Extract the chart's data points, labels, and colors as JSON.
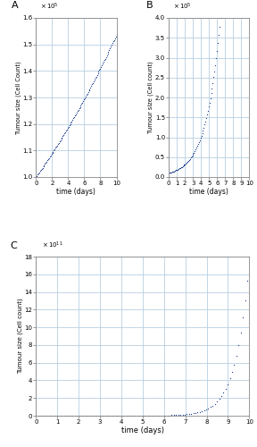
{
  "title_A": "A",
  "title_B": "B",
  "title_C": "C",
  "xlabel": "time (days)",
  "ylabel_A": "Tumour size (Cell Count)",
  "ylabel_B": "Tumour size (Cell count)",
  "ylabel_C": "Tumour size (Cell count)",
  "xmax": 10,
  "xticks_A": [
    0,
    2,
    4,
    6,
    8,
    10
  ],
  "xticks_B": [
    0,
    1,
    2,
    3,
    4,
    5,
    6,
    7,
    8,
    9,
    10
  ],
  "xticks_C": [
    0,
    1,
    2,
    3,
    4,
    5,
    6,
    7,
    8,
    9,
    10
  ],
  "dot_color": "#1a3d8f",
  "dot_size": 1.8,
  "background_color": "#ffffff",
  "grid_color": "#b8cfe0",
  "ylim_A": [
    1.0,
    1.6
  ],
  "ylim_B": [
    0,
    4.0
  ],
  "ylim_C": [
    0,
    18
  ],
  "yticks_A": [
    1.0,
    1.1,
    1.2,
    1.3,
    1.4,
    1.5,
    1.6
  ],
  "yticks_B": [
    0,
    0.5,
    1.0,
    1.5,
    2.0,
    2.5,
    3.0,
    3.5,
    4.0
  ],
  "yticks_C": [
    0,
    2,
    4,
    6,
    8,
    10,
    12,
    14,
    16,
    18
  ],
  "exp_A": "x 10^{5}",
  "exp_B": "x 10^{5}",
  "exp_C": "x 10^{11}"
}
